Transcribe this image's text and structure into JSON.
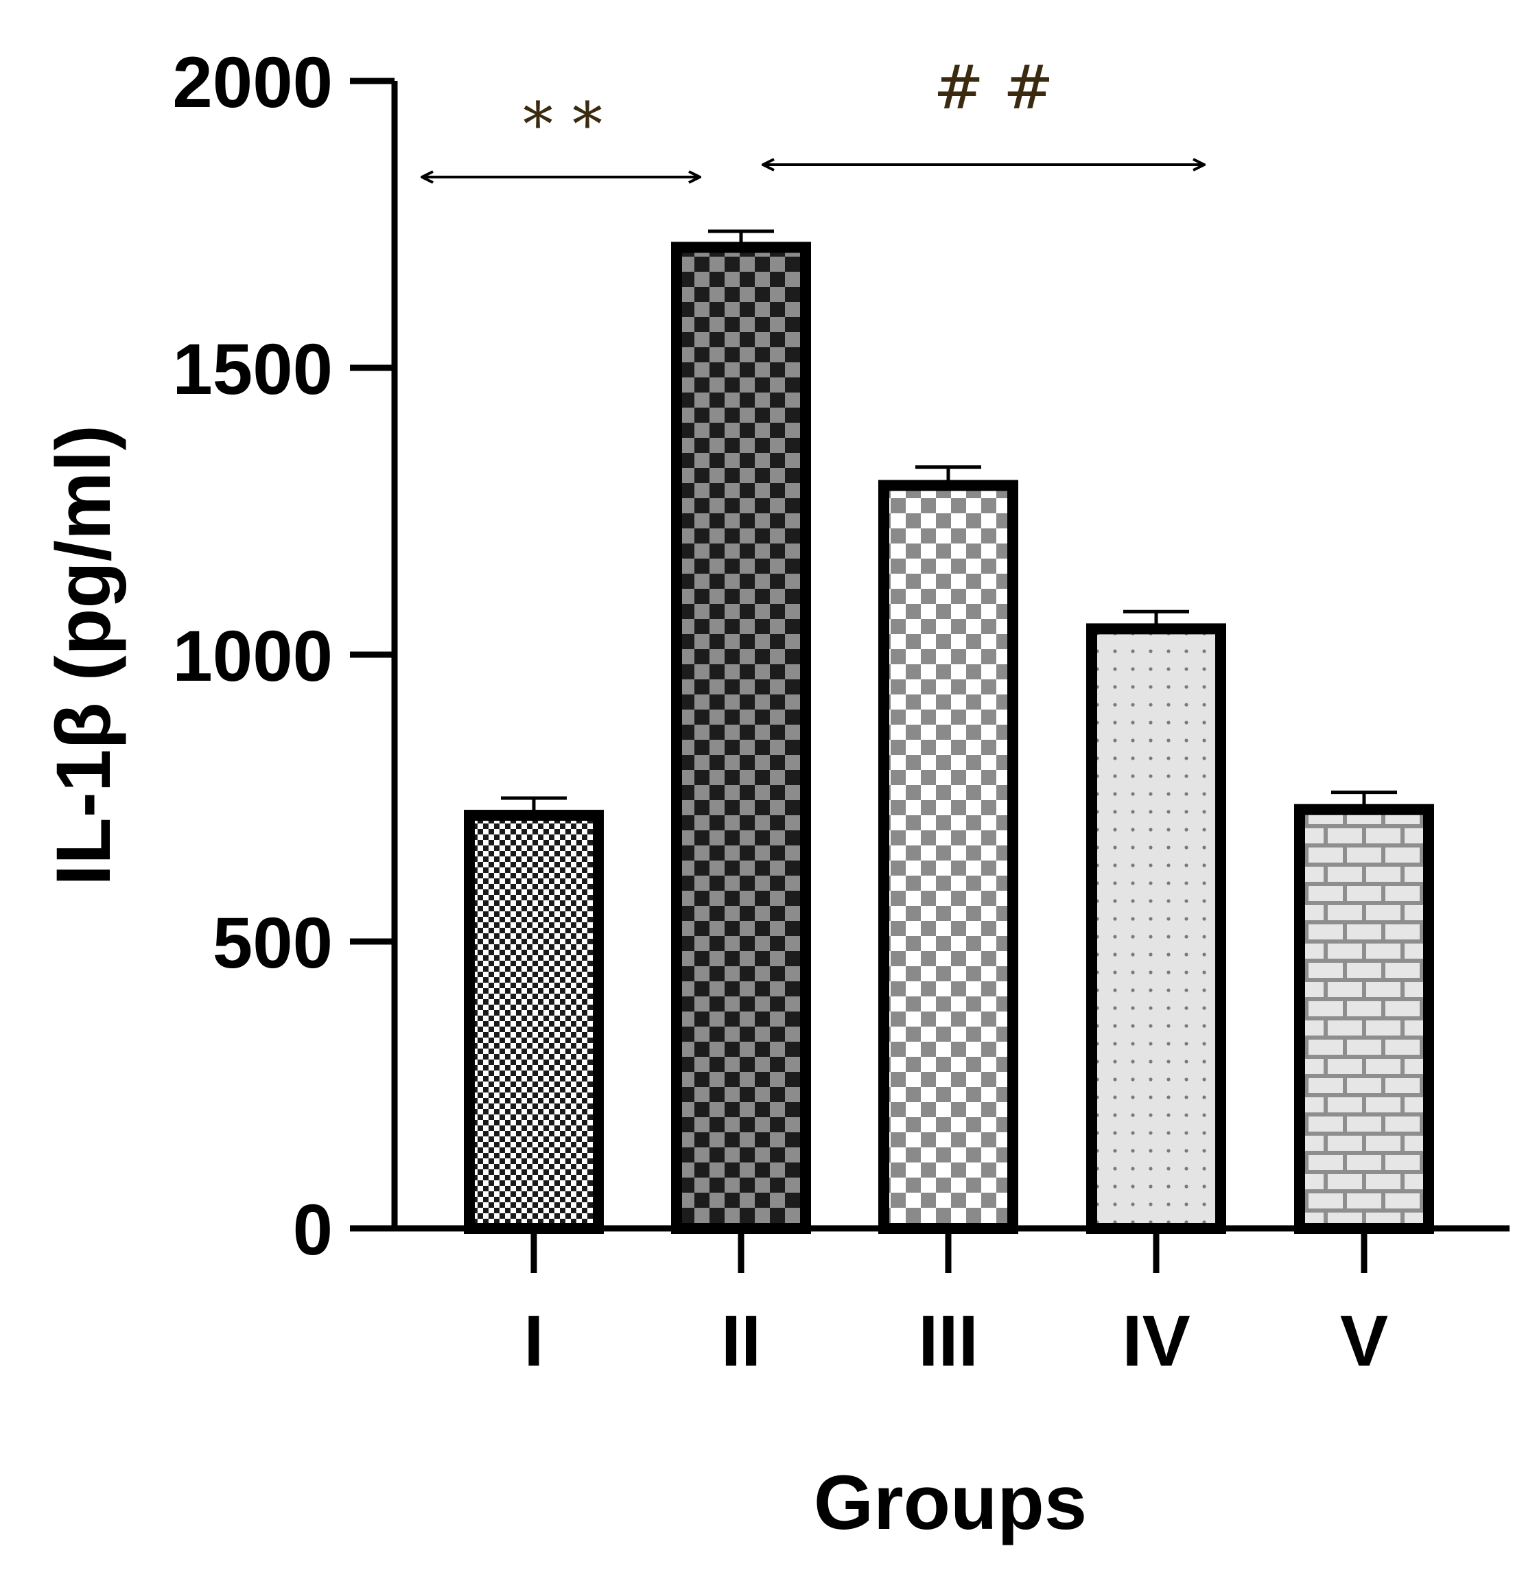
{
  "chart_data": {
    "type": "bar",
    "xlabel": "Groups",
    "ylabel": "IL-1β (pg/ml)",
    "ylim": [
      0,
      2000
    ],
    "yticks": [
      0,
      500,
      1000,
      1500,
      2000
    ],
    "categories": [
      "I",
      "II",
      "III",
      "IV",
      "V"
    ],
    "values": [
      720,
      1710,
      1295,
      1045,
      730
    ],
    "errors": [
      30,
      28,
      32,
      30,
      30
    ],
    "patterns": [
      "fine-check-dark",
      "check-black-grey",
      "check-grey-white",
      "dots-light",
      "brick-grey"
    ],
    "annotations": [
      {
        "label": "* *",
        "from": "I",
        "to": "II"
      },
      {
        "label": "# #",
        "from": "II",
        "to": "IV"
      }
    ],
    "grid": false,
    "legend": "none"
  }
}
